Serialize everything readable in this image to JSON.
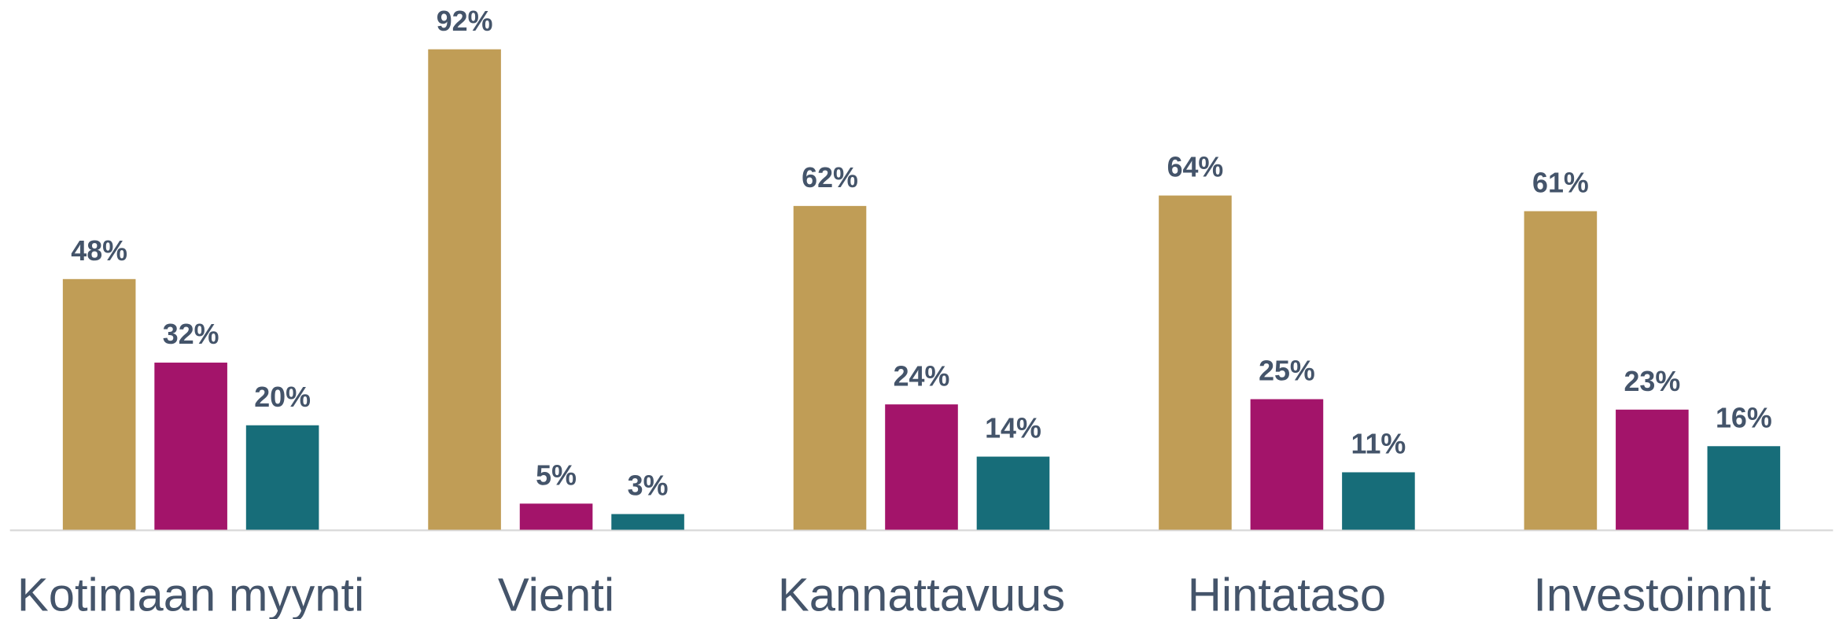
{
  "chart_data": {
    "type": "bar",
    "categories": [
      "Kotimaan myynti",
      "Vienti",
      "Kannattavuus",
      "Hintataso",
      "Investoinnit"
    ],
    "series": [
      {
        "color": "#c09d56",
        "values": [
          48,
          92,
          62,
          64,
          61
        ],
        "value_labels": [
          "48%",
          "92%",
          "62%",
          "64%",
          "61%"
        ]
      },
      {
        "color": "#a3146a",
        "values": [
          32,
          5,
          24,
          25,
          23
        ],
        "value_labels": [
          "32%",
          "5%",
          "24%",
          "25%",
          "23%"
        ]
      },
      {
        "color": "#176d79",
        "values": [
          20,
          3,
          14,
          11,
          16
        ],
        "value_labels": [
          "20%",
          "3%",
          "14%",
          "11%",
          "16%"
        ]
      }
    ],
    "ylim": [
      0,
      100
    ]
  }
}
